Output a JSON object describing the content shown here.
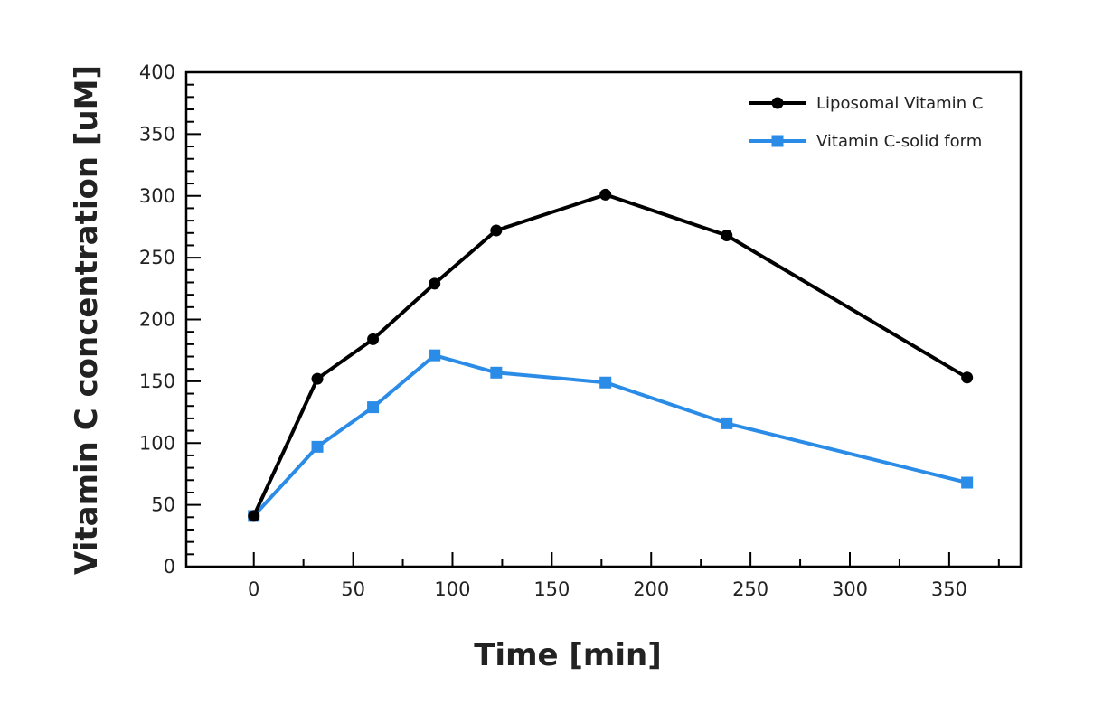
{
  "chart_data": {
    "type": "line",
    "title": "",
    "xlabel": "Time [min]",
    "ylabel": "Vitamin C concentration [uM]",
    "xlim": [
      -34,
      386
    ],
    "ylim": [
      0,
      400
    ],
    "x_ticks": [
      0,
      50,
      100,
      150,
      200,
      250,
      300,
      350
    ],
    "y_ticks": [
      0,
      50,
      100,
      150,
      200,
      250,
      300,
      350,
      400
    ],
    "x_minor_step": 25,
    "y_minor_step": 10,
    "grid": false,
    "legend_position": "top-right",
    "series": [
      {
        "name": "Liposomal Vitamin C",
        "color": "#000000",
        "marker": "circle",
        "x": [
          0,
          32,
          60,
          91,
          122,
          177,
          238,
          359
        ],
        "y": [
          41,
          152,
          184,
          229,
          272,
          301,
          268,
          153
        ]
      },
      {
        "name": "Vitamin C-solid form",
        "color": "#2a8ce6",
        "marker": "square",
        "x": [
          0,
          32,
          60,
          91,
          122,
          177,
          238,
          359
        ],
        "y": [
          41,
          97,
          129,
          171,
          157,
          149,
          116,
          68
        ]
      }
    ]
  }
}
